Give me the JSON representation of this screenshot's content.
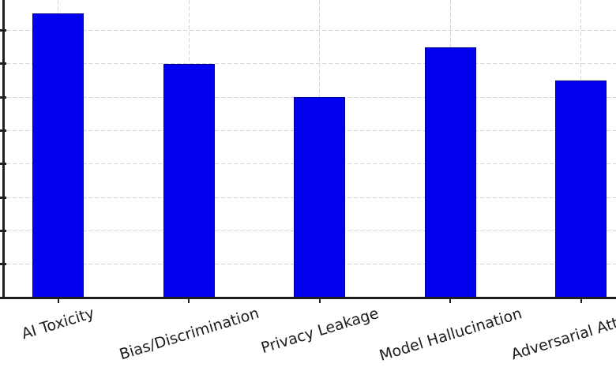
{
  "figure": {
    "background": "#ffffff",
    "view_note": "cropped plot: no title, no y-axis tick labels visible, right edge clips last category label"
  },
  "chart_data": {
    "type": "bar",
    "categories": [
      "AI Toxicity",
      "Bias/Discrimination",
      "Privacy Leakage",
      "Model Hallucination",
      "Adversarial Attacks"
    ],
    "values": [
      85,
      70,
      60,
      75,
      65
    ],
    "title": "",
    "xlabel": "",
    "ylabel": "",
    "grid": true,
    "grid_style": "dashed",
    "gridline_step": 10,
    "ylim_visible": [
      0,
      89
    ],
    "y_tick_labels_visible": false,
    "x_tick_label_rotation_deg": 17,
    "legend": "none",
    "colors": {
      "bar_fill": "#0101f0",
      "bar_edge": "#000090",
      "grid": "#d6d6d6",
      "axis": "#1f1f1f",
      "label_text": "#1c1c1c"
    }
  }
}
